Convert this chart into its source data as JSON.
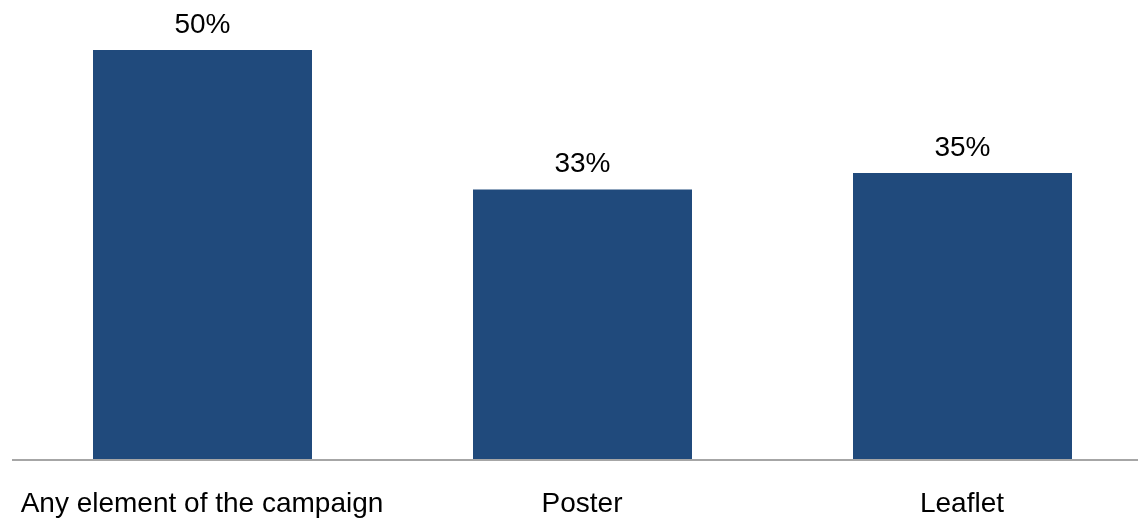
{
  "chart_data": {
    "type": "bar",
    "categories": [
      "Any element of the campaign",
      "Poster",
      "Leaflet"
    ],
    "values": [
      50,
      33,
      35
    ],
    "value_labels": [
      "50%",
      "33%",
      "35%"
    ],
    "color": "#204a7c"
  }
}
